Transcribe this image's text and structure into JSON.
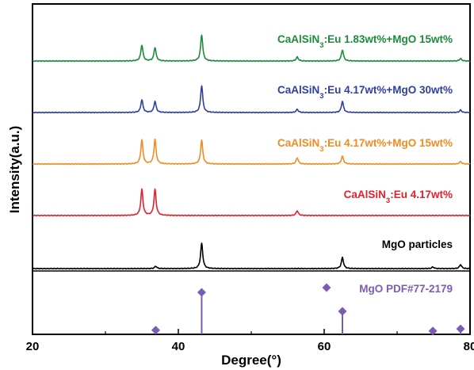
{
  "chart_data": {
    "type": "line",
    "xlabel": "Degree(°)",
    "ylabel": "Intensity(a.u.)",
    "xlim": [
      20,
      80
    ],
    "xticks": [
      "20",
      "40",
      "60",
      "80"
    ],
    "grid": false,
    "series": [
      {
        "name_main": "CaAlSiN",
        "name_sub": "3",
        "name_rest": ":Eu 1.83wt%+MgO 15wt%",
        "color": "#1e8a3c",
        "peaks": [
          [
            35.0,
            20
          ],
          [
            36.8,
            17
          ],
          [
            43.2,
            33
          ],
          [
            56.3,
            5
          ],
          [
            62.5,
            14
          ],
          [
            78.7,
            3
          ]
        ]
      },
      {
        "name_main": "CaAlSiN",
        "name_sub": "3",
        "name_rest": ":Eu 4.17wt%+MgO 30wt%",
        "color": "#2e3f9e",
        "peaks": [
          [
            35.0,
            16
          ],
          [
            36.8,
            14
          ],
          [
            43.2,
            34
          ],
          [
            56.3,
            4
          ],
          [
            62.5,
            14
          ],
          [
            78.7,
            3
          ]
        ]
      },
      {
        "name_main": "CaAlSiN",
        "name_sub": "3",
        "name_rest": ":Eu 4.17wt%+MgO 15wt%",
        "color": "#f08c21",
        "peaks": [
          [
            35.0,
            30
          ],
          [
            36.8,
            31
          ],
          [
            43.2,
            30
          ],
          [
            56.3,
            8
          ],
          [
            62.5,
            10
          ],
          [
            78.7,
            3
          ]
        ]
      },
      {
        "name_main": "CaAlSiN",
        "name_sub": "3",
        "name_rest": ":Eu 4.17wt%",
        "color": "#e0232a",
        "peaks": [
          [
            35.0,
            33
          ],
          [
            36.8,
            33
          ],
          [
            56.3,
            6
          ]
        ]
      },
      {
        "name_main": "MgO particles",
        "name_sub": "",
        "name_rest": "",
        "color": "#000000",
        "peaks": [
          [
            36.9,
            3
          ],
          [
            43.2,
            32
          ],
          [
            62.5,
            14
          ],
          [
            74.9,
            2
          ],
          [
            78.7,
            5
          ]
        ]
      }
    ],
    "reference": {
      "name": "MgO PDF#77-2179",
      "color": "#7b5cb5",
      "sticks": [
        [
          36.9,
          10
        ],
        [
          43.2,
          100
        ],
        [
          62.5,
          55
        ],
        [
          74.9,
          8
        ],
        [
          78.7,
          13
        ]
      ]
    }
  }
}
